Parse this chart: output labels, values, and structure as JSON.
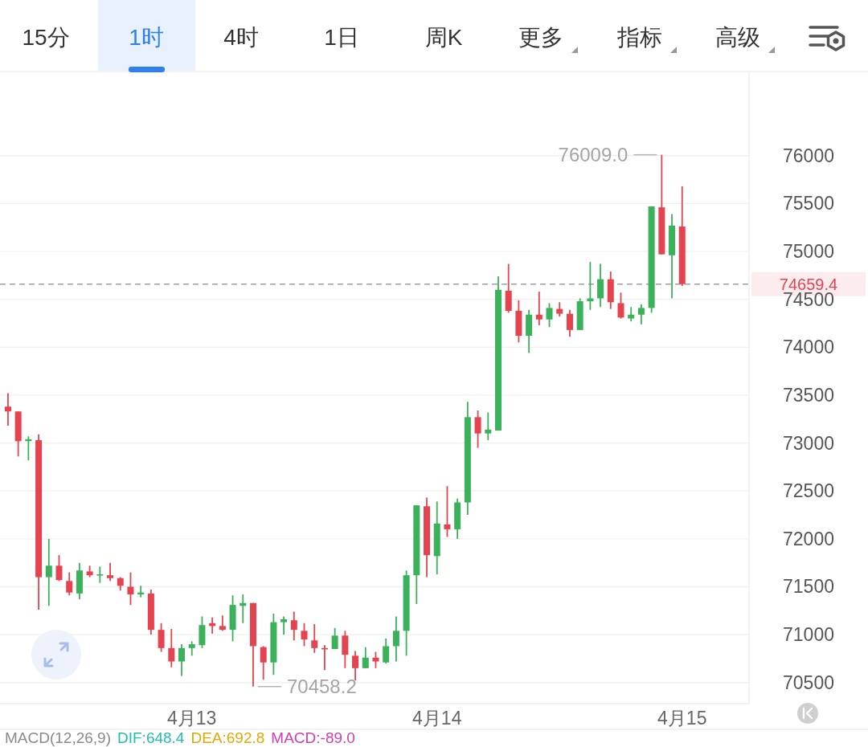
{
  "chart_data": {
    "type": "candlestick",
    "x": [
      "--04-12T06:00",
      "--04-12T07:00",
      "--04-12T08:00",
      "--04-12T09:00",
      "--04-12T10:00",
      "--04-12T11:00",
      "--04-12T12:00",
      "--04-12T13:00",
      "--04-12T14:00",
      "--04-12T15:00",
      "--04-12T16:00",
      "--04-12T17:00",
      "--04-12T18:00",
      "--04-12T19:00",
      "--04-12T20:00",
      "--04-12T21:00",
      "--04-12T22:00",
      "--04-12T23:00",
      "--04-13T00:00",
      "--04-13T01:00",
      "--04-13T02:00",
      "--04-13T03:00",
      "--04-13T04:00",
      "--04-13T05:00",
      "--04-13T06:00",
      "--04-13T07:00",
      "--04-13T08:00",
      "--04-13T09:00",
      "--04-13T10:00",
      "--04-13T11:00",
      "--04-13T12:00",
      "--04-13T13:00",
      "--04-13T14:00",
      "--04-13T15:00",
      "--04-13T16:00",
      "--04-13T17:00",
      "--04-13T18:00",
      "--04-13T19:00",
      "--04-13T20:00",
      "--04-13T21:00",
      "--04-13T22:00",
      "--04-13T23:00",
      "--04-14T00:00",
      "--04-14T01:00",
      "--04-14T02:00",
      "--04-14T03:00",
      "--04-14T04:00",
      "--04-14T05:00",
      "--04-14T06:00",
      "--04-14T07:00",
      "--04-14T08:00",
      "--04-14T09:00",
      "--04-14T10:00",
      "--04-14T11:00",
      "--04-14T12:00",
      "--04-14T13:00",
      "--04-14T14:00",
      "--04-14T15:00",
      "--04-14T16:00",
      "--04-14T17:00",
      "--04-14T18:00",
      "--04-14T19:00",
      "--04-14T20:00",
      "--04-14T21:00",
      "--04-14T22:00",
      "--04-14T23:00",
      "--04-15T00:00"
    ],
    "ohlc": [
      [
        73380,
        73520,
        73180,
        73330
      ],
      [
        73330,
        73330,
        72860,
        73020
      ],
      [
        73020,
        73070,
        72820,
        73040
      ],
      [
        73030,
        73090,
        71260,
        71600
      ],
      [
        71600,
        72000,
        71300,
        71720
      ],
      [
        71720,
        71830,
        71560,
        71570
      ],
      [
        71560,
        71650,
        71410,
        71440
      ],
      [
        71430,
        71750,
        71370,
        71670
      ],
      [
        71660,
        71720,
        71600,
        71620
      ],
      [
        71620,
        71710,
        71540,
        71630
      ],
      [
        71620,
        71750,
        71560,
        71590
      ],
      [
        71590,
        71600,
        71460,
        71510
      ],
      [
        71500,
        71650,
        71310,
        71420
      ],
      [
        71420,
        71510,
        71390,
        71440
      ],
      [
        71430,
        71470,
        71000,
        71050
      ],
      [
        71050,
        71120,
        70820,
        70860
      ],
      [
        70860,
        71060,
        70660,
        70720
      ],
      [
        70720,
        70900,
        70570,
        70860
      ],
      [
        70860,
        70930,
        70780,
        70900
      ],
      [
        70890,
        71190,
        70860,
        71100
      ],
      [
        71120,
        71180,
        71010,
        71090
      ],
      [
        71090,
        71200,
        71040,
        71050
      ],
      [
        71050,
        71410,
        70930,
        71310
      ],
      [
        71300,
        71420,
        71120,
        71330
      ],
      [
        71330,
        71330,
        70458.2,
        70880
      ],
      [
        70870,
        70880,
        70530,
        70710
      ],
      [
        70710,
        71220,
        70580,
        71130
      ],
      [
        71130,
        71190,
        71000,
        71160
      ],
      [
        71150,
        71240,
        70940,
        71050
      ],
      [
        71040,
        71120,
        70880,
        70950
      ],
      [
        70940,
        71110,
        70810,
        70860
      ],
      [
        70860,
        70890,
        70630,
        70850
      ],
      [
        70850,
        71070,
        70850,
        70990
      ],
      [
        70990,
        71040,
        70650,
        70790
      ],
      [
        70780,
        70830,
        70520,
        70650
      ],
      [
        70650,
        70870,
        70650,
        70760
      ],
      [
        70760,
        70820,
        70650,
        70720
      ],
      [
        70710,
        70960,
        70700,
        70880
      ],
      [
        70880,
        71190,
        70720,
        71040
      ],
      [
        71040,
        71670,
        70780,
        71620
      ],
      [
        71620,
        72350,
        71320,
        72350
      ],
      [
        72340,
        72430,
        71600,
        71830
      ],
      [
        71820,
        72390,
        71630,
        72160
      ],
      [
        72150,
        72550,
        72020,
        72100
      ],
      [
        72100,
        72420,
        72000,
        72380
      ],
      [
        72380,
        73430,
        72250,
        73270
      ],
      [
        73270,
        73340,
        72950,
        73100
      ],
      [
        73100,
        73320,
        73030,
        73140
      ],
      [
        73130,
        74740,
        73130,
        74600
      ],
      [
        74590,
        74870,
        74360,
        74380
      ],
      [
        74380,
        74490,
        74050,
        74120
      ],
      [
        74120,
        74390,
        73940,
        74340
      ],
      [
        74340,
        74580,
        74230,
        74290
      ],
      [
        74290,
        74460,
        74210,
        74410
      ],
      [
        74400,
        74470,
        74320,
        74350
      ],
      [
        74350,
        74390,
        74110,
        74180
      ],
      [
        74180,
        74510,
        74180,
        74480
      ],
      [
        74480,
        74890,
        74390,
        74510
      ],
      [
        74510,
        74870,
        74420,
        74710
      ],
      [
        74710,
        74790,
        74400,
        74470
      ],
      [
        74460,
        74570,
        74300,
        74310
      ],
      [
        74300,
        74420,
        74270,
        74340
      ],
      [
        74340,
        74450,
        74240,
        74410
      ],
      [
        74410,
        75470,
        74360,
        75470
      ],
      [
        75460,
        76009.0,
        74970,
        74970
      ],
      [
        74960,
        75390,
        74510,
        75270
      ],
      [
        75260,
        75680,
        74640,
        74659.4
      ]
    ],
    "colors": [
      "#e5434f",
      "#e5434f",
      "#3bb15b",
      "#e5434f",
      "#3bb15b",
      "#e5434f",
      "#e5434f",
      "#3bb15b",
      "#e5434f",
      "#3bb15b",
      "#e5434f",
      "#e5434f",
      "#e5434f",
      "#3bb15b",
      "#e5434f",
      "#e5434f",
      "#e5434f",
      "#3bb15b",
      "#3bb15b",
      "#3bb15b",
      "#e5434f",
      "#e5434f",
      "#3bb15b",
      "#3bb15b",
      "#e5434f",
      "#e5434f",
      "#3bb15b",
      "#3bb15b",
      "#e5434f",
      "#e5434f",
      "#e5434f",
      "#e5434f",
      "#3bb15b",
      "#e5434f",
      "#e5434f",
      "#3bb15b",
      "#e5434f",
      "#3bb15b",
      "#3bb15b",
      "#3bb15b",
      "#3bb15b",
      "#e5434f",
      "#3bb15b",
      "#e5434f",
      "#3bb15b",
      "#3bb15b",
      "#e5434f",
      "#3bb15b",
      "#3bb15b",
      "#e5434f",
      "#e5434f",
      "#3bb15b",
      "#e5434f",
      "#3bb15b",
      "#e5434f",
      "#e5434f",
      "#3bb15b",
      "#3bb15b",
      "#3bb15b",
      "#e5434f",
      "#e5434f",
      "#3bb15b",
      "#3bb15b",
      "#3bb15b",
      "#e5434f",
      "#3bb15b",
      "#e5434f"
    ],
    "xlim": [
      "--04-12T05:13",
      "--04-15T06:33"
    ],
    "xticks": [
      {
        "value": "--04-13",
        "label": "4月13"
      },
      {
        "value": "--04-14",
        "label": "4月14"
      },
      {
        "value": "--04-15",
        "label": "4月15"
      }
    ],
    "ylim": [
      70280,
      76870
    ],
    "yticks": [
      70500,
      71000,
      71500,
      72000,
      72500,
      73000,
      73500,
      74000,
      74500,
      75000,
      75500,
      76000
    ],
    "grid": "y",
    "ref_lines": [
      {
        "axis": "y",
        "value": 74659.4,
        "label": "74659.4",
        "color": "#a0a0a0",
        "line_style": "dashed"
      }
    ],
    "annotations": [
      "15分",
      "1时",
      "4时",
      "1日",
      "周K",
      "更多",
      "指标",
      "高级",
      {
        "text": "76009.0",
        "x": "--04-14T22:00",
        "y": 76009.0
      },
      {
        "text": "70458.2",
        "x": "--04-13T06:00",
        "y": 70458.2
      },
      "MACD(12,26,9)",
      "DIF:648.4",
      "DEA:692.8",
      "MACD:-89.0"
    ]
  }
}
